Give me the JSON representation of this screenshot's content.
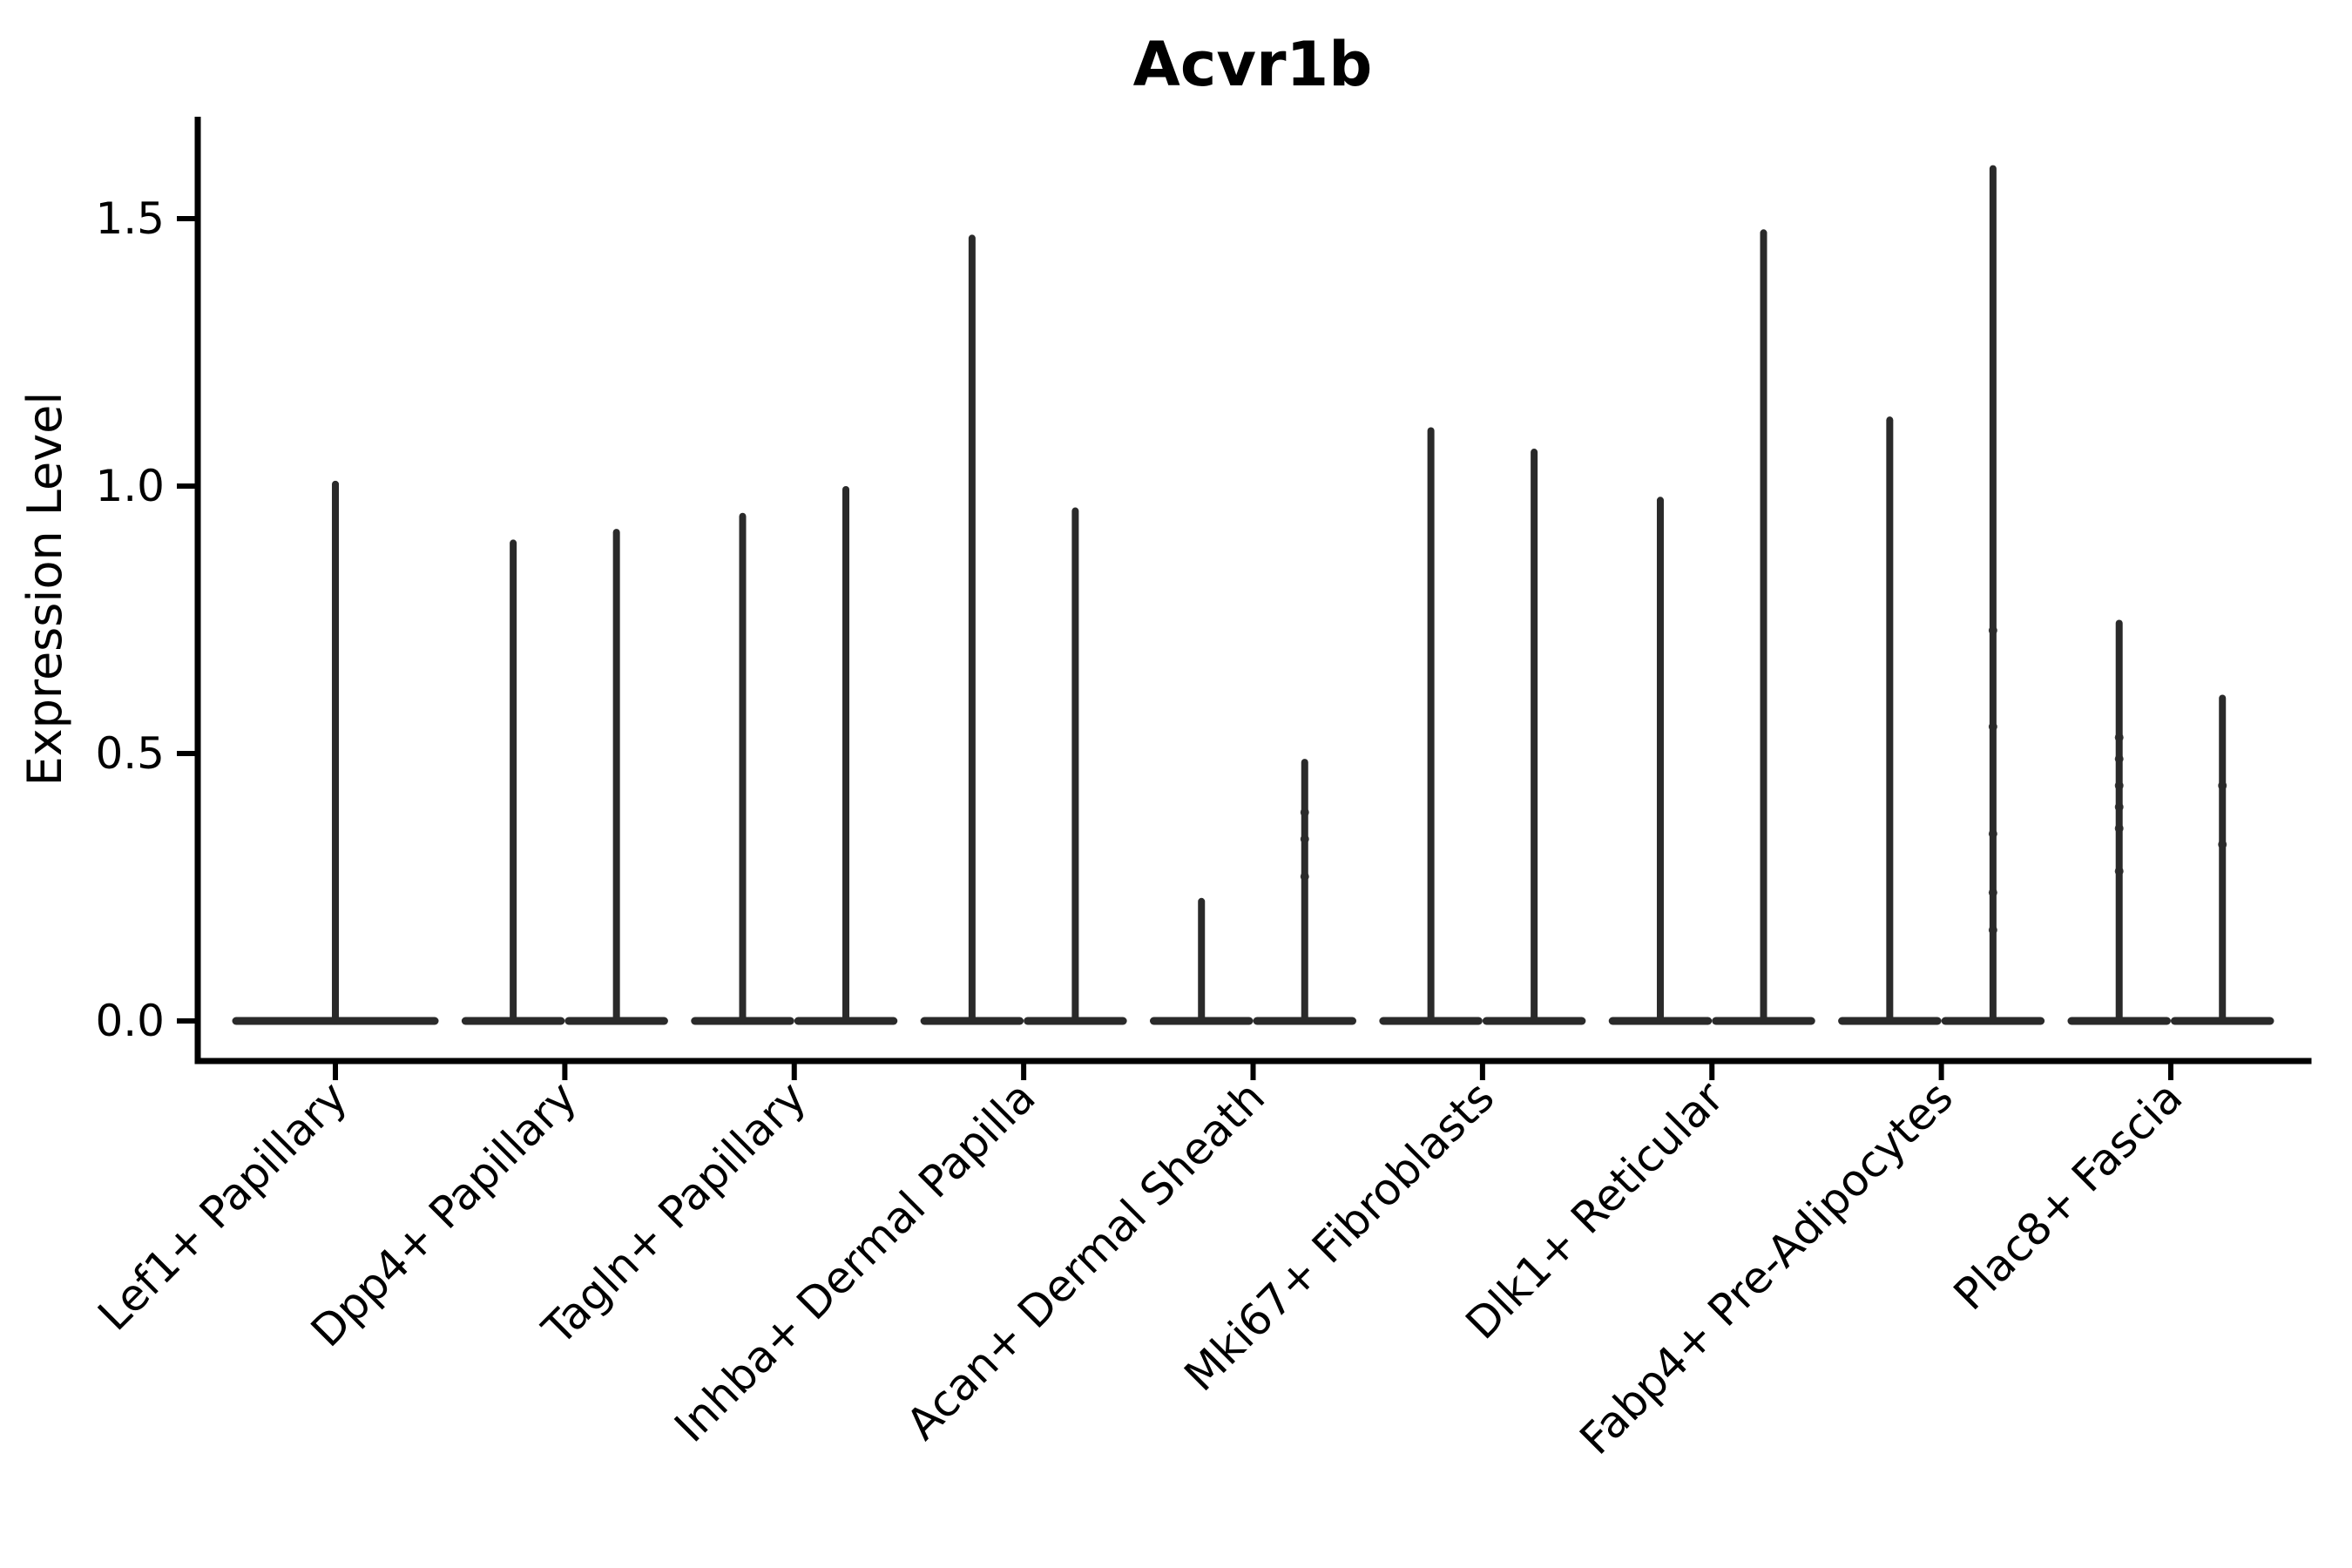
{
  "chart_data": {
    "type": "violin",
    "title": "Acvr1b",
    "ylabel": "Expression Level",
    "xlabel": "",
    "ylim": [
      -0.07,
      1.69
    ],
    "ytick_values": [
      0.0,
      0.5,
      1.0,
      1.5
    ],
    "ytick_labels": [
      "0.0",
      "0.5",
      "1.0",
      "1.5"
    ],
    "x_label_rotation_deg": 45,
    "legend": "none",
    "grid": "off",
    "style_note": "violins are flat at 0 with single thin vertical tails; categories 2-9 contain two side-by-side split violins, category 1 a single centered violin",
    "colors": {
      "violin": "#2a2a2a",
      "axis": "#000000",
      "text": "#000000",
      "background": "#ffffff"
    },
    "categories": [
      {
        "label": "Lef1+ Papillary",
        "violins": [
          {
            "position": "full",
            "max": 1.01,
            "points": []
          }
        ]
      },
      {
        "label": "Dpp4+ Papillary",
        "violins": [
          {
            "position": "left",
            "max": 0.9,
            "points": []
          },
          {
            "position": "right",
            "max": 0.92,
            "points": []
          }
        ]
      },
      {
        "label": "Tagln+ Papillary",
        "violins": [
          {
            "position": "left",
            "max": 0.95,
            "points": []
          },
          {
            "position": "right",
            "max": 1.0,
            "points": []
          }
        ]
      },
      {
        "label": "Inhba+ Dermal Papilla",
        "violins": [
          {
            "position": "left",
            "max": 1.47,
            "points": []
          },
          {
            "position": "right",
            "max": 0.96,
            "points": []
          }
        ]
      },
      {
        "label": "Acan+ Dermal Sheath",
        "violins": [
          {
            "position": "left",
            "max": 0.23,
            "points": []
          },
          {
            "position": "right",
            "max": 0.49,
            "points": [
              0.39,
              0.34,
              0.27
            ]
          }
        ]
      },
      {
        "label": "Mki67+ Fibroblasts",
        "violins": [
          {
            "position": "left",
            "max": 1.11,
            "points": []
          },
          {
            "position": "right",
            "max": 1.07,
            "points": []
          }
        ]
      },
      {
        "label": "Dlk1+ Reticular",
        "violins": [
          {
            "position": "left",
            "max": 0.98,
            "points": []
          },
          {
            "position": "right",
            "max": 1.48,
            "points": []
          }
        ]
      },
      {
        "label": "Fabp4+ Pre-Adipocytes",
        "violins": [
          {
            "position": "left",
            "max": 1.13,
            "points": []
          },
          {
            "position": "right",
            "max": 1.6,
            "points": [
              0.73,
              0.55,
              0.35,
              0.24,
              0.17
            ]
          }
        ]
      },
      {
        "label": "Plac8+ Fascia",
        "violins": [
          {
            "position": "left",
            "max": 0.75,
            "points": [
              0.53,
              0.49,
              0.44,
              0.4,
              0.36,
              0.28
            ]
          },
          {
            "position": "right",
            "max": 0.61,
            "points": [
              0.44,
              0.33
            ]
          }
        ]
      }
    ]
  }
}
